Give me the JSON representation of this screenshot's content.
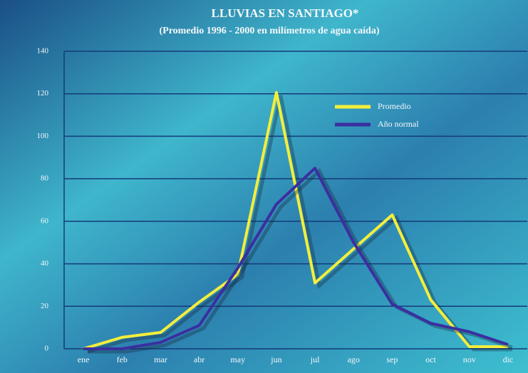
{
  "chart_data": {
    "type": "line",
    "title": "LLUVIAS EN SANTIAGO*",
    "subtitle": "(Promedio 1996 - 2000 en milímetros de agua caída)",
    "categories": [
      "ene",
      "feb",
      "mar",
      "abr",
      "may",
      "jun",
      "jul",
      "ago",
      "sep",
      "oct",
      "nov",
      "dic"
    ],
    "series": [
      {
        "name": "Promedio",
        "color": "#f3ee3c",
        "values": [
          0,
          5.4,
          7.7,
          22,
          35,
          120.6,
          31,
          47,
          63,
          23,
          1,
          1
        ]
      },
      {
        "name": "Año normal",
        "color": "#3b2fa0",
        "values": [
          0,
          0,
          3,
          11,
          38,
          68,
          85,
          50,
          21,
          12,
          8,
          2
        ]
      }
    ],
    "ylim": [
      0,
      140
    ],
    "yticks": [
      0,
      20,
      40,
      60,
      80,
      100,
      120,
      140
    ],
    "grid": true
  }
}
